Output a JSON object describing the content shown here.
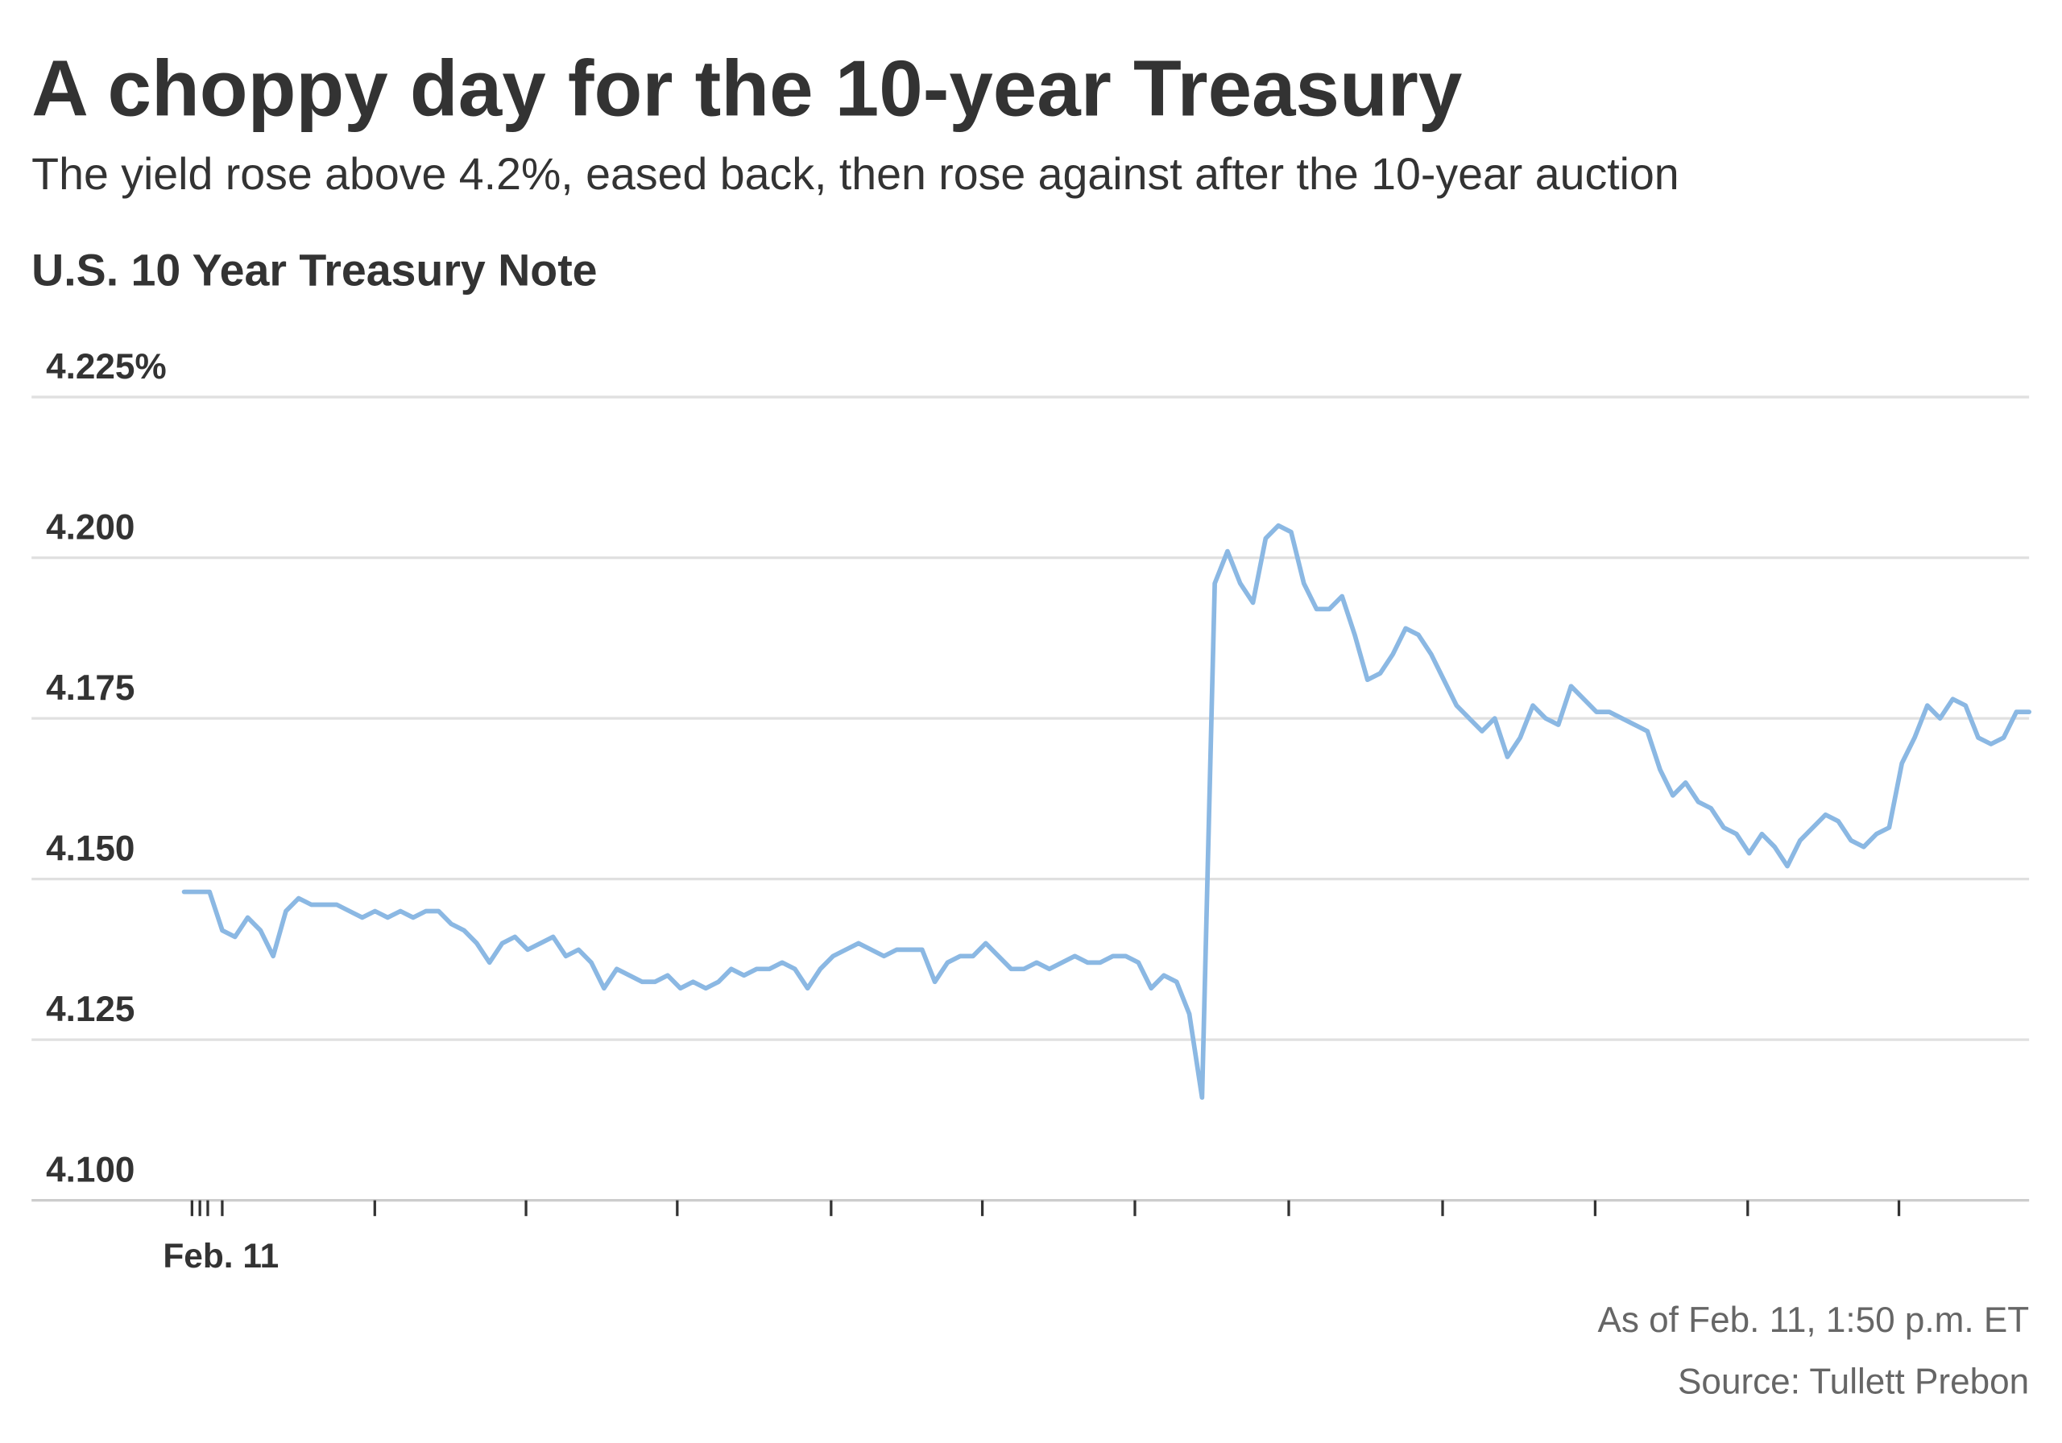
{
  "chart_data": {
    "type": "line",
    "title": "A choppy day for the 10-year Treasury",
    "subtitle": "The yield rose above 4.2%, eased back, then rose against after the 10-year auction",
    "chart_title": "U.S. 10 Year Treasury Note",
    "x_label": "Feb. 11",
    "note": "As of Feb. 11, 1:50 p.m. ET",
    "source": "Source: Tullett Prebon",
    "ylim": [
      4.1,
      4.225
    ],
    "yticks": [
      {
        "value": 4.1,
        "label": "4.100"
      },
      {
        "value": 4.125,
        "label": "4.125"
      },
      {
        "value": 4.15,
        "label": "4.150"
      },
      {
        "value": 4.175,
        "label": "4.175"
      },
      {
        "value": 4.2,
        "label": "4.200"
      },
      {
        "value": 4.225,
        "label": "4.225%"
      }
    ],
    "grid": true,
    "series": [
      {
        "color": "#8bb8e3",
        "values": [
          4.148,
          4.148,
          4.148,
          4.142,
          4.141,
          4.144,
          4.142,
          4.138,
          4.145,
          4.147,
          4.146,
          4.146,
          4.146,
          4.145,
          4.144,
          4.145,
          4.144,
          4.145,
          4.144,
          4.145,
          4.145,
          4.143,
          4.142,
          4.14,
          4.137,
          4.14,
          4.141,
          4.139,
          4.14,
          4.141,
          4.138,
          4.139,
          4.137,
          4.133,
          4.136,
          4.135,
          4.134,
          4.134,
          4.135,
          4.133,
          4.134,
          4.133,
          4.134,
          4.136,
          4.135,
          4.136,
          4.136,
          4.137,
          4.136,
          4.133,
          4.136,
          4.138,
          4.139,
          4.14,
          4.139,
          4.138,
          4.139,
          4.139,
          4.139,
          4.134,
          4.137,
          4.138,
          4.138,
          4.14,
          4.138,
          4.136,
          4.136,
          4.137,
          4.136,
          4.137,
          4.138,
          4.137,
          4.137,
          4.138,
          4.138,
          4.137,
          4.133,
          4.135,
          4.134,
          4.129,
          4.116,
          4.196,
          4.201,
          4.196,
          4.193,
          4.203,
          4.205,
          4.204,
          4.196,
          4.192,
          4.192,
          4.194,
          4.188,
          4.181,
          4.182,
          4.185,
          4.189,
          4.188,
          4.185,
          4.181,
          4.177,
          4.175,
          4.173,
          4.175,
          4.169,
          4.172,
          4.177,
          4.175,
          4.174,
          4.18,
          4.178,
          4.176,
          4.176,
          4.175,
          4.174,
          4.173,
          4.167,
          4.163,
          4.165,
          4.162,
          4.161,
          4.158,
          4.157,
          4.154,
          4.157,
          4.155,
          4.152,
          4.156,
          4.158,
          4.16,
          4.159,
          4.156,
          4.155,
          4.157,
          4.158,
          4.168,
          4.172,
          4.177,
          4.175,
          4.178,
          4.177,
          4.172,
          4.171,
          4.172,
          4.176,
          4.176
        ]
      }
    ]
  }
}
